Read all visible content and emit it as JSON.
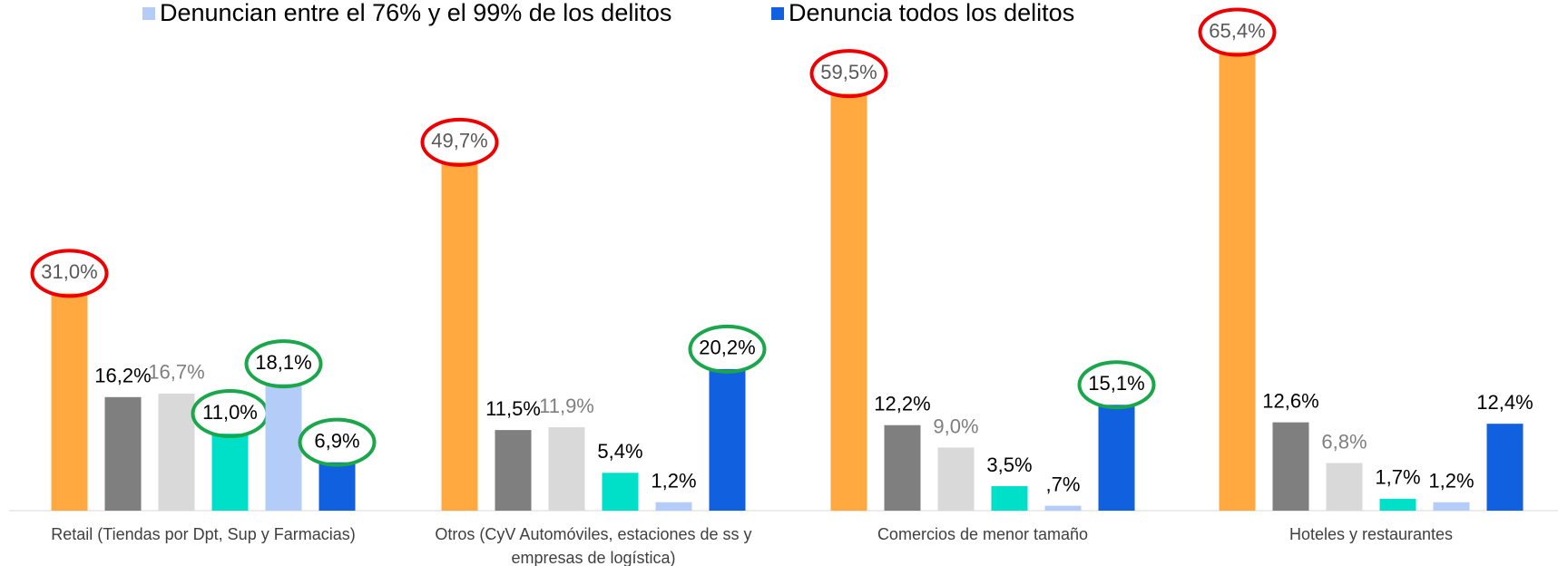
{
  "chart_data": {
    "type": "bar",
    "categories": [
      "Retail (Tiendas por Dpt, Sup y Farmacias)",
      "Otros (CyV Automóviles, estaciones de ss y empresas de logística)",
      "Comercios de menor tamaño",
      "Hoteles y restaurantes"
    ],
    "ylim": [
      0,
      70
    ],
    "series": [
      {
        "color": "#ffa940",
        "values": [
          31.0,
          49.7,
          59.5,
          65.4
        ],
        "value_labels": [
          "31,0%",
          "49,7%",
          "59,5%",
          "65,4%"
        ]
      },
      {
        "color": "#7f7f7f",
        "values": [
          16.2,
          11.5,
          12.2,
          12.6
        ],
        "value_labels": [
          "16,2%",
          "11,5%",
          "12,2%",
          "12,6%"
        ]
      },
      {
        "color": "#d9d9d9",
        "values": [
          16.7,
          11.9,
          9.0,
          6.8
        ],
        "value_labels": [
          "16,7%",
          "11,9%",
          "9,0%",
          "6,8%"
        ]
      },
      {
        "color": "#00e0c8",
        "values": [
          11.0,
          5.4,
          3.5,
          1.7
        ],
        "value_labels": [
          "11,0%",
          "5,4%",
          "3,5%",
          "1,7%"
        ]
      },
      {
        "name": "Denuncian entre el 76% y el 99% de los delitos",
        "color": "#b4cdf8",
        "values": [
          18.1,
          1.2,
          0.7,
          1.2
        ],
        "value_labels": [
          "18,1%",
          "1,2%",
          ",7%",
          "1,2%"
        ]
      },
      {
        "name": "Denuncia todos los delitos",
        "color": "#1060e0",
        "values": [
          6.9,
          20.2,
          15.1,
          12.4
        ],
        "value_labels": [
          "6,9%",
          "20,2%",
          "15,1%",
          "12,4%"
        ]
      }
    ]
  }
}
